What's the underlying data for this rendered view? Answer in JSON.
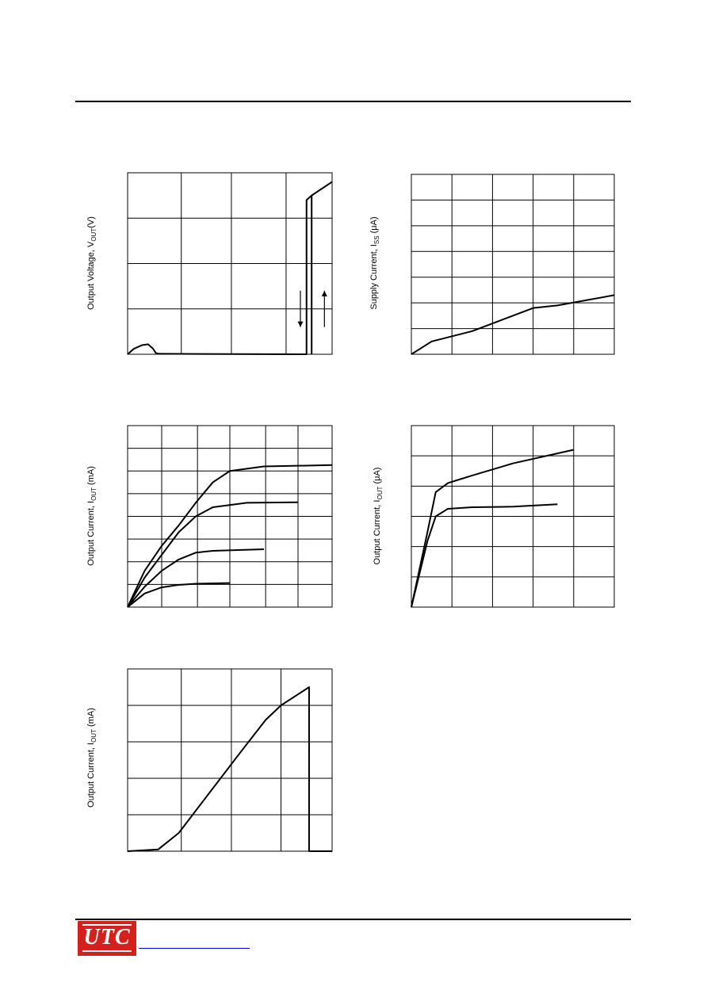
{
  "page": {
    "logo_text": "UTC"
  },
  "charts": [
    {
      "id": "c1",
      "ylabel": "Output Voltage, V",
      "ylabel_sub": "OUT",
      "ylabel_tail": "(V)"
    },
    {
      "id": "c2",
      "ylabel": "Supply Current, I",
      "ylabel_sub": "SS",
      "ylabel_tail": " (μA)"
    },
    {
      "id": "c3",
      "ylabel": "Output Current, I",
      "ylabel_sub": "OUT",
      "ylabel_tail": " (mA)"
    },
    {
      "id": "c4",
      "ylabel": "Output Current, I",
      "ylabel_sub": "OUT",
      "ylabel_tail": " (μA)"
    },
    {
      "id": "c5",
      "ylabel": "Output Current, I",
      "ylabel_sub": "OUT",
      "ylabel_tail": " (mA)"
    }
  ],
  "chart_data": [
    {
      "type": "line",
      "title": "",
      "ylabel": "Output Voltage, VOUT(V)",
      "xlabel": "",
      "xlim": [
        0,
        4
      ],
      "ylim": [
        0,
        4
      ],
      "grid": true,
      "x_grid": [
        1.05,
        2.03,
        3.1
      ],
      "y_grid": [
        1,
        2,
        3
      ],
      "series": [
        {
          "values": [
            [
              0,
              0
            ],
            [
              0.12,
              0.12
            ],
            [
              0.28,
              0.2
            ],
            [
              0.4,
              0.22
            ],
            [
              0.5,
              0.12
            ],
            [
              0.55,
              0.03
            ],
            [
              0.62,
              0.01
            ],
            [
              3.5,
              0.0
            ],
            [
              3.5,
              3.4
            ],
            [
              3.6,
              3.5
            ],
            [
              3.6,
              0.0
            ]
          ]
        },
        {
          "values": [
            [
              3.6,
              3.5
            ],
            [
              4.0,
              3.8
            ]
          ]
        }
      ],
      "annotations": [
        {
          "type": "arrow",
          "direction": "down",
          "x": 3.38,
          "y_from": 1.4,
          "y_to": 0.6
        },
        {
          "type": "arrow",
          "direction": "up",
          "x": 3.85,
          "y_from": 0.6,
          "y_to": 1.4
        }
      ]
    },
    {
      "type": "line",
      "title": "",
      "ylabel": "Supply Current, ISS (μA)",
      "xlabel": "",
      "xlim": [
        0,
        5
      ],
      "ylim": [
        0,
        7
      ],
      "grid": true,
      "series": [
        {
          "values": [
            [
              0,
              0
            ],
            [
              0.5,
              0.5
            ],
            [
              1.5,
              0.9
            ],
            [
              3.0,
              1.8
            ],
            [
              3.6,
              1.9
            ],
            [
              4.3,
              2.1
            ],
            [
              5.0,
              2.3
            ]
          ]
        }
      ]
    },
    {
      "type": "line",
      "title": "",
      "ylabel": "Output Current, IOUT (mA)",
      "xlabel": "",
      "xlim": [
        0,
        6
      ],
      "ylim": [
        0,
        8
      ],
      "grid": true,
      "x_grid": [
        1,
        2.05,
        3,
        4.05,
        5
      ],
      "series": [
        {
          "values": [
            [
              0,
              0
            ],
            [
              0.5,
              1.6
            ],
            [
              1.0,
              2.7
            ],
            [
              1.5,
              3.6
            ],
            [
              2.0,
              4.6
            ],
            [
              2.5,
              5.5
            ],
            [
              3.0,
              6.0
            ],
            [
              4.0,
              6.2
            ],
            [
              6.0,
              6.26
            ]
          ]
        },
        {
          "values": [
            [
              0,
              0
            ],
            [
              0.5,
              1.3
            ],
            [
              1.0,
              2.3
            ],
            [
              1.5,
              3.3
            ],
            [
              2.0,
              4.0
            ],
            [
              2.5,
              4.4
            ],
            [
              3.5,
              4.6
            ],
            [
              5.0,
              4.62
            ]
          ]
        },
        {
          "values": [
            [
              0,
              0
            ],
            [
              0.5,
              0.9
            ],
            [
              1.0,
              1.6
            ],
            [
              1.5,
              2.1
            ],
            [
              2.0,
              2.4
            ],
            [
              2.5,
              2.48
            ],
            [
              4.0,
              2.55
            ]
          ]
        },
        {
          "values": [
            [
              0,
              0
            ],
            [
              0.5,
              0.6
            ],
            [
              1.0,
              0.87
            ],
            [
              1.5,
              0.98
            ],
            [
              2.0,
              1.03
            ],
            [
              3.0,
              1.06
            ]
          ]
        }
      ]
    },
    {
      "type": "line",
      "title": "",
      "ylabel": "Output Current, IOUT (μA)",
      "xlabel": "",
      "xlim": [
        0,
        5
      ],
      "ylim": [
        0,
        6
      ],
      "grid": true,
      "series": [
        {
          "values": [
            [
              0,
              0
            ],
            [
              0.4,
              2.5
            ],
            [
              0.6,
              3.8
            ],
            [
              0.9,
              4.1
            ],
            [
              1.5,
              4.35
            ],
            [
              2.5,
              4.75
            ],
            [
              4.0,
              5.2
            ]
          ]
        },
        {
          "values": [
            [
              0,
              0
            ],
            [
              0.4,
              2.2
            ],
            [
              0.6,
              3.0
            ],
            [
              0.9,
              3.25
            ],
            [
              1.5,
              3.3
            ],
            [
              2.5,
              3.32
            ],
            [
              3.6,
              3.4
            ]
          ]
        }
      ]
    },
    {
      "type": "line",
      "title": "",
      "ylabel": "Output Current, IOUT (mA)",
      "xlabel": "",
      "xlim": [
        0,
        4
      ],
      "ylim": [
        0,
        5
      ],
      "grid": true,
      "x_grid": [
        1.05,
        2.03,
        3.0
      ],
      "series": [
        {
          "values": [
            [
              0,
              0
            ],
            [
              0.6,
              0.05
            ],
            [
              1.0,
              0.5
            ],
            [
              1.6,
              1.6
            ],
            [
              2.2,
              2.7
            ],
            [
              2.7,
              3.6
            ],
            [
              3.0,
              4.0
            ],
            [
              3.55,
              4.5
            ],
            [
              3.55,
              0.0
            ],
            [
              4.0,
              0.0
            ]
          ]
        }
      ]
    }
  ]
}
